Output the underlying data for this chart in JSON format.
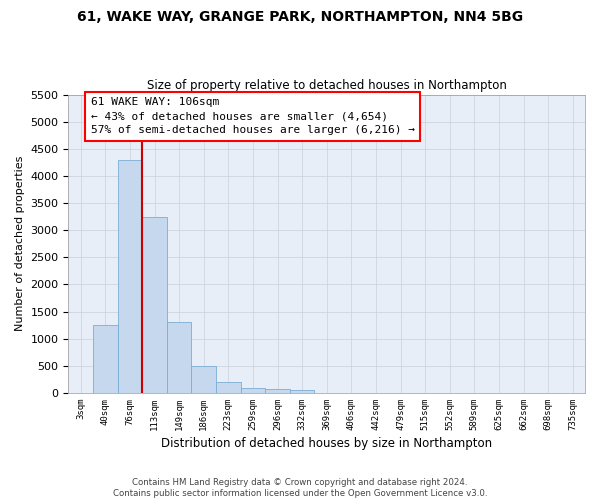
{
  "title": "61, WAKE WAY, GRANGE PARK, NORTHAMPTON, NN4 5BG",
  "subtitle": "Size of property relative to detached houses in Northampton",
  "xlabel": "Distribution of detached houses by size in Northampton",
  "ylabel": "Number of detached properties",
  "footer_line1": "Contains HM Land Registry data © Crown copyright and database right 2024.",
  "footer_line2": "Contains public sector information licensed under the Open Government Licence v3.0.",
  "annotation_line1": "61 WAKE WAY: 106sqm",
  "annotation_line2": "← 43% of detached houses are smaller (4,654)",
  "annotation_line3": "57% of semi-detached houses are larger (6,216) →",
  "bar_color": "#c5d8ed",
  "bar_edge_color": "#7aadd4",
  "marker_color": "#cc0000",
  "categories": [
    "3sqm",
    "40sqm",
    "76sqm",
    "113sqm",
    "149sqm",
    "186sqm",
    "223sqm",
    "259sqm",
    "296sqm",
    "332sqm",
    "369sqm",
    "406sqm",
    "442sqm",
    "479sqm",
    "515sqm",
    "552sqm",
    "589sqm",
    "625sqm",
    "662sqm",
    "698sqm",
    "735sqm"
  ],
  "values": [
    0,
    1250,
    4300,
    3250,
    1300,
    500,
    200,
    100,
    75,
    50,
    0,
    0,
    0,
    0,
    0,
    0,
    0,
    0,
    0,
    0,
    0
  ],
  "ylim_max": 5500,
  "yticks": [
    0,
    500,
    1000,
    1500,
    2000,
    2500,
    3000,
    3500,
    4000,
    4500,
    5000,
    5500
  ],
  "marker_bin_index": 2,
  "ax_facecolor": "#e8eef8",
  "fig_facecolor": "#ffffff",
  "grid_color": "#c8d0dc"
}
